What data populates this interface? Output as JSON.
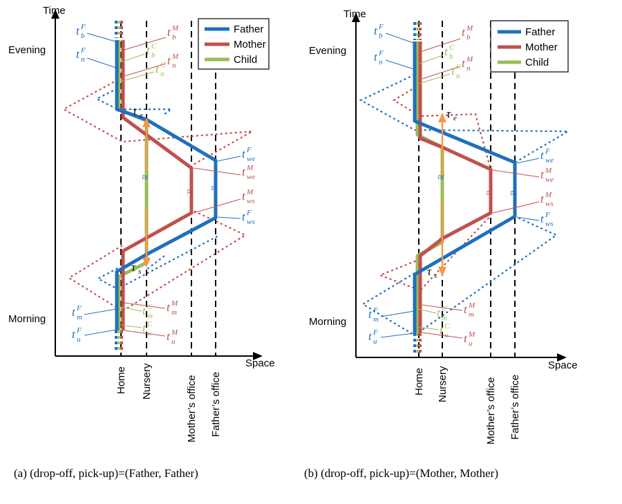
{
  "colors": {
    "father": "#1f6fbe",
    "mother": "#c0504d",
    "child": "#9bbb59",
    "arrow": "#f79646"
  },
  "axes": {
    "y_label": "Time",
    "x_label": "Space",
    "evening": "Evening",
    "morning": "Morning"
  },
  "locations": {
    "home": "Home",
    "nursery": "Nursery",
    "mothers_office": "Mother’s office",
    "fathers_office": "Father’s office"
  },
  "legend": {
    "father": "Father",
    "mother": "Mother",
    "child": "Child"
  },
  "symbols": {
    "t": "t",
    "tau": "τ",
    "F": "F",
    "M": "M",
    "C": "C",
    "b": "b",
    "n": "n",
    "m": "m",
    "u": "u",
    "we": "we",
    "ws": "ws",
    "e": "e",
    "s": "s",
    "break": "≈"
  },
  "captions": {
    "a": "(a) (drop-off, pick-up)=(Father, Father)",
    "b": "(b) (drop-off, pick-up)=(Mother, Mother)"
  }
}
